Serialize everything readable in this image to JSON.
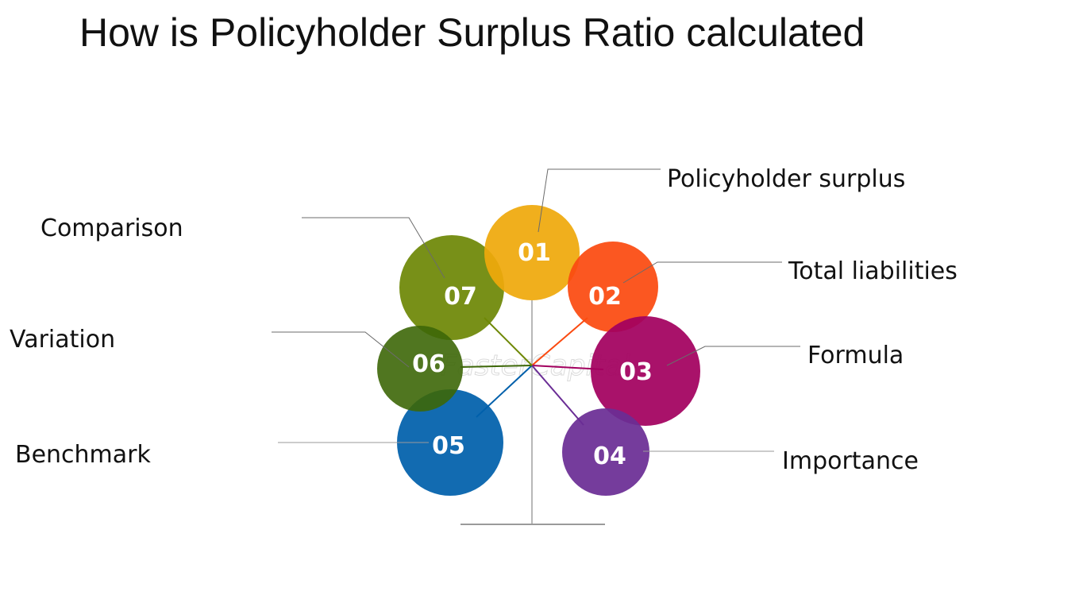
{
  "title": "How is Policyholder Surplus Ratio calculated",
  "watermark": "FasterCapital",
  "colors": {
    "item_01": "#EFA90C",
    "item_02": "#FB4A10",
    "item_03": "#A2005F",
    "item_04": "#6A2D95",
    "item_05": "#0060AB",
    "item_06": "#3D6708",
    "item_07": "#6E8806",
    "tree_trunk": "#b8b8b8",
    "text": "#111111"
  },
  "items": [
    {
      "number": "01",
      "label": "Policyholder surplus"
    },
    {
      "number": "02",
      "label": "Total liabilities"
    },
    {
      "number": "03",
      "label": "Formula"
    },
    {
      "number": "04",
      "label": "Importance"
    },
    {
      "number": "05",
      "label": "Benchmark"
    },
    {
      "number": "06",
      "label": "Variation"
    },
    {
      "number": "07",
      "label": "Comparison"
    }
  ]
}
